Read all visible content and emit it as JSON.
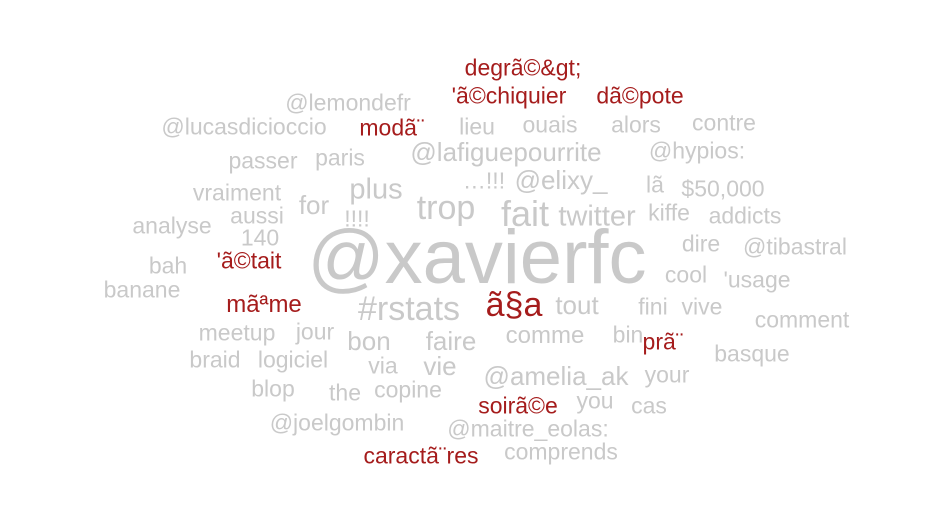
{
  "colors": {
    "grey": "#c9c9c9",
    "red": "#a51c1c"
  },
  "words": [
    {
      "text": "@xavierfc",
      "color": "red_grey",
      "group": "grey"
    },
    {
      "text": "degrã©&gt;",
      "group": "red"
    },
    {
      "text": "'ã©chiquier",
      "group": "red"
    },
    {
      "text": "dã©pote",
      "group": "red"
    },
    {
      "text": "@lemondefr",
      "group": "grey"
    },
    {
      "text": "@lucasdicioccio",
      "group": "grey"
    },
    {
      "text": "modã¨",
      "group": "red"
    },
    {
      "text": "lieu",
      "group": "grey"
    },
    {
      "text": "ouais",
      "group": "grey"
    },
    {
      "text": "alors",
      "group": "grey"
    },
    {
      "text": "contre",
      "group": "grey"
    },
    {
      "text": "passer",
      "group": "grey"
    },
    {
      "text": "paris",
      "group": "grey"
    },
    {
      "text": "@lafiguepourrite",
      "group": "grey"
    },
    {
      "text": "@hypios:",
      "group": "grey"
    },
    {
      "text": "…!!!",
      "group": "grey"
    },
    {
      "text": "@elixy_",
      "group": "grey"
    },
    {
      "text": "lã",
      "group": "grey"
    },
    {
      "text": "$50,000",
      "group": "grey"
    },
    {
      "text": "vraiment",
      "group": "grey"
    },
    {
      "text": "plus",
      "group": "grey"
    },
    {
      "text": "for",
      "group": "grey"
    },
    {
      "text": "!!!!",
      "group": "grey"
    },
    {
      "text": "trop",
      "group": "grey"
    },
    {
      "text": "fait",
      "group": "grey"
    },
    {
      "text": "twitter",
      "group": "grey"
    },
    {
      "text": "kiffe",
      "group": "grey"
    },
    {
      "text": "addicts",
      "group": "grey"
    },
    {
      "text": "analyse",
      "group": "grey"
    },
    {
      "text": "aussi",
      "group": "grey"
    },
    {
      "text": "140",
      "group": "grey"
    },
    {
      "text": "dire",
      "group": "grey"
    },
    {
      "text": "@tibastral",
      "group": "grey"
    },
    {
      "text": "bah",
      "group": "grey"
    },
    {
      "text": "'ã©tait",
      "group": "red"
    },
    {
      "text": "cool",
      "group": "grey"
    },
    {
      "text": "'usage",
      "group": "grey"
    },
    {
      "text": "banane",
      "group": "grey"
    },
    {
      "text": "mãªme",
      "group": "red"
    },
    {
      "text": "#rstats",
      "group": "grey"
    },
    {
      "text": "ã§a",
      "group": "red"
    },
    {
      "text": "tout",
      "group": "grey"
    },
    {
      "text": "fini",
      "group": "grey"
    },
    {
      "text": "vive",
      "group": "grey"
    },
    {
      "text": "comment",
      "group": "grey"
    },
    {
      "text": "meetup",
      "group": "grey"
    },
    {
      "text": "jour",
      "group": "grey"
    },
    {
      "text": "bon",
      "group": "grey"
    },
    {
      "text": "faire",
      "group": "grey"
    },
    {
      "text": "comme",
      "group": "grey"
    },
    {
      "text": "bin",
      "group": "grey"
    },
    {
      "text": "prã¨",
      "group": "red"
    },
    {
      "text": "basque",
      "group": "grey"
    },
    {
      "text": "braid",
      "group": "grey"
    },
    {
      "text": "logiciel",
      "group": "grey"
    },
    {
      "text": "via",
      "group": "grey"
    },
    {
      "text": "vie",
      "group": "grey"
    },
    {
      "text": "@amelia_ak",
      "group": "grey"
    },
    {
      "text": "your",
      "group": "grey"
    },
    {
      "text": "blop",
      "group": "grey"
    },
    {
      "text": "the",
      "group": "grey"
    },
    {
      "text": "copine",
      "group": "grey"
    },
    {
      "text": "soirã©e",
      "group": "red"
    },
    {
      "text": "you",
      "group": "grey"
    },
    {
      "text": "cas",
      "group": "grey"
    },
    {
      "text": "@joelgombin",
      "group": "grey"
    },
    {
      "text": "@maitre_eolas:",
      "group": "grey"
    },
    {
      "text": "caractã¨res",
      "group": "red"
    },
    {
      "text": "comprends",
      "group": "grey"
    }
  ]
}
